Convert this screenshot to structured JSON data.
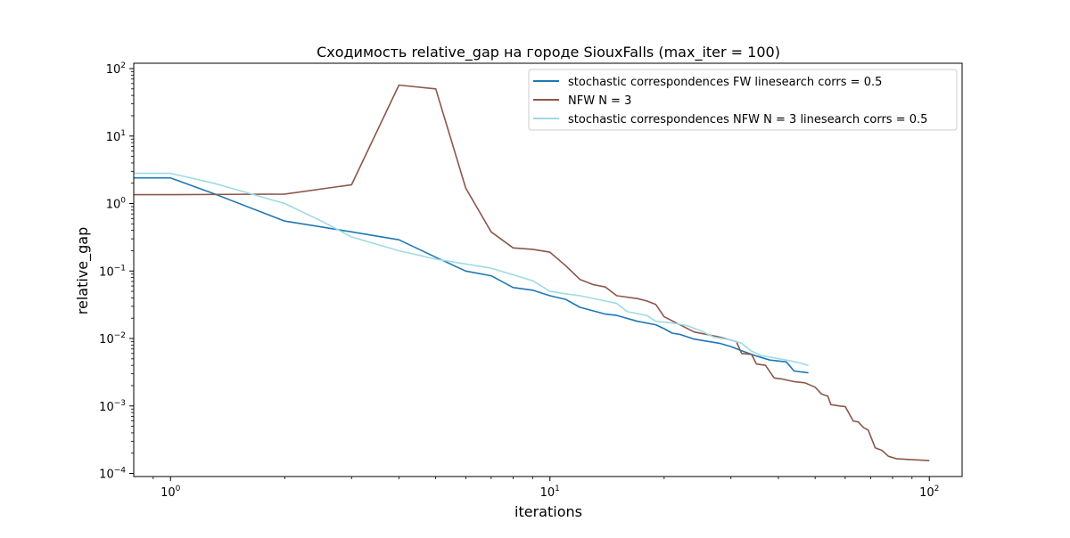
{
  "chart_data": {
    "type": "line",
    "title": "Сходимость relative_gap на городе SiouxFalls  (max_iter = 100)",
    "xlabel": "iterations",
    "ylabel": "relative_gap",
    "xscale": "log",
    "yscale": "log",
    "xlim": [
      0.8,
      122
    ],
    "ylim": [
      9e-05,
      120
    ],
    "grid": false,
    "legend_position": "top-right",
    "x_ticks": [
      {
        "value": 1,
        "base": "10",
        "exp": "0"
      },
      {
        "value": 10,
        "base": "10",
        "exp": "1"
      },
      {
        "value": 100,
        "base": "10",
        "exp": "2"
      }
    ],
    "y_ticks": [
      {
        "value": 0.0001,
        "base": "10",
        "exp": "−4"
      },
      {
        "value": 0.001,
        "base": "10",
        "exp": "−3"
      },
      {
        "value": 0.01,
        "base": "10",
        "exp": "−2"
      },
      {
        "value": 0.1,
        "base": "10",
        "exp": "−1"
      },
      {
        "value": 1,
        "base": "10",
        "exp": "0"
      },
      {
        "value": 10,
        "base": "10",
        "exp": "1"
      },
      {
        "value": 100,
        "base": "10",
        "exp": "2"
      }
    ],
    "series": [
      {
        "name": "stochastic correspondences FW linesearch corrs = 0.5",
        "color": "#1f77b4",
        "points": [
          [
            0.8,
            2.4
          ],
          [
            1,
            2.4
          ],
          [
            1.3,
            1.4
          ],
          [
            2,
            0.55
          ],
          [
            2.5,
            0.45
          ],
          [
            3,
            0.38
          ],
          [
            4,
            0.29
          ],
          [
            5,
            0.16
          ],
          [
            6,
            0.1
          ],
          [
            7,
            0.085
          ],
          [
            8,
            0.057
          ],
          [
            9,
            0.052
          ],
          [
            10,
            0.043
          ],
          [
            11,
            0.038
          ],
          [
            12,
            0.029
          ],
          [
            14,
            0.023
          ],
          [
            15,
            0.022
          ],
          [
            17,
            0.018
          ],
          [
            19,
            0.016
          ],
          [
            20,
            0.014
          ],
          [
            21,
            0.012
          ],
          [
            22,
            0.0115
          ],
          [
            24,
            0.0098
          ],
          [
            28,
            0.0085
          ],
          [
            30,
            0.0076
          ],
          [
            32,
            0.0066
          ],
          [
            35,
            0.0055
          ],
          [
            38,
            0.0048
          ],
          [
            42,
            0.0045
          ],
          [
            44,
            0.0033
          ],
          [
            48,
            0.0031
          ]
        ]
      },
      {
        "name": "NFW N = 3",
        "color": "#8c564b",
        "points": [
          [
            0.8,
            1.35
          ],
          [
            1,
            1.35
          ],
          [
            2,
            1.38
          ],
          [
            3,
            1.9
          ],
          [
            4,
            57
          ],
          [
            5,
            50
          ],
          [
            6,
            1.7
          ],
          [
            7,
            0.38
          ],
          [
            8,
            0.22
          ],
          [
            9,
            0.21
          ],
          [
            10,
            0.19
          ],
          [
            11,
            0.12
          ],
          [
            12,
            0.075
          ],
          [
            13,
            0.063
          ],
          [
            14,
            0.058
          ],
          [
            15,
            0.043
          ],
          [
            17,
            0.039
          ],
          [
            18,
            0.036
          ],
          [
            19,
            0.032
          ],
          [
            20,
            0.021
          ],
          [
            22,
            0.016
          ],
          [
            24,
            0.0125
          ],
          [
            28,
            0.0105
          ],
          [
            31,
            0.009
          ],
          [
            32,
            0.006
          ],
          [
            34,
            0.0058
          ],
          [
            35,
            0.0042
          ],
          [
            37,
            0.004
          ],
          [
            39,
            0.0026
          ],
          [
            41,
            0.0025
          ],
          [
            44,
            0.0023
          ],
          [
            47,
            0.0022
          ],
          [
            50,
            0.0019
          ],
          [
            52,
            0.0015
          ],
          [
            54,
            0.0014
          ],
          [
            55,
            0.00105
          ],
          [
            58,
            0.001
          ],
          [
            60,
            0.00098
          ],
          [
            63,
            0.0006
          ],
          [
            65,
            0.00058
          ],
          [
            67,
            0.00048
          ],
          [
            69,
            0.00044
          ],
          [
            72,
            0.00024
          ],
          [
            75,
            0.00022
          ],
          [
            78,
            0.00018
          ],
          [
            82,
            0.000165
          ],
          [
            100,
            0.000155
          ]
        ]
      },
      {
        "name": "stochastic correspondences NFW N = 3 linesearch corrs = 0.5",
        "color": "#9edae5",
        "points": [
          [
            0.8,
            2.8
          ],
          [
            1,
            2.8
          ],
          [
            1.3,
            2.0
          ],
          [
            2,
            1.0
          ],
          [
            2.5,
            0.55
          ],
          [
            3,
            0.32
          ],
          [
            4,
            0.2
          ],
          [
            5,
            0.15
          ],
          [
            7,
            0.11
          ],
          [
            8,
            0.088
          ],
          [
            9,
            0.072
          ],
          [
            10,
            0.05
          ],
          [
            11,
            0.046
          ],
          [
            12,
            0.043
          ],
          [
            14,
            0.036
          ],
          [
            15,
            0.033
          ],
          [
            16,
            0.025
          ],
          [
            18,
            0.022
          ],
          [
            19,
            0.018
          ],
          [
            21,
            0.017
          ],
          [
            23,
            0.0155
          ],
          [
            25,
            0.013
          ],
          [
            27,
            0.0105
          ],
          [
            30,
            0.0095
          ],
          [
            32,
            0.0085
          ],
          [
            34,
            0.0065
          ],
          [
            36,
            0.0056
          ],
          [
            38,
            0.0053
          ],
          [
            42,
            0.0048
          ],
          [
            45,
            0.0044
          ],
          [
            48,
            0.004
          ]
        ]
      }
    ]
  }
}
